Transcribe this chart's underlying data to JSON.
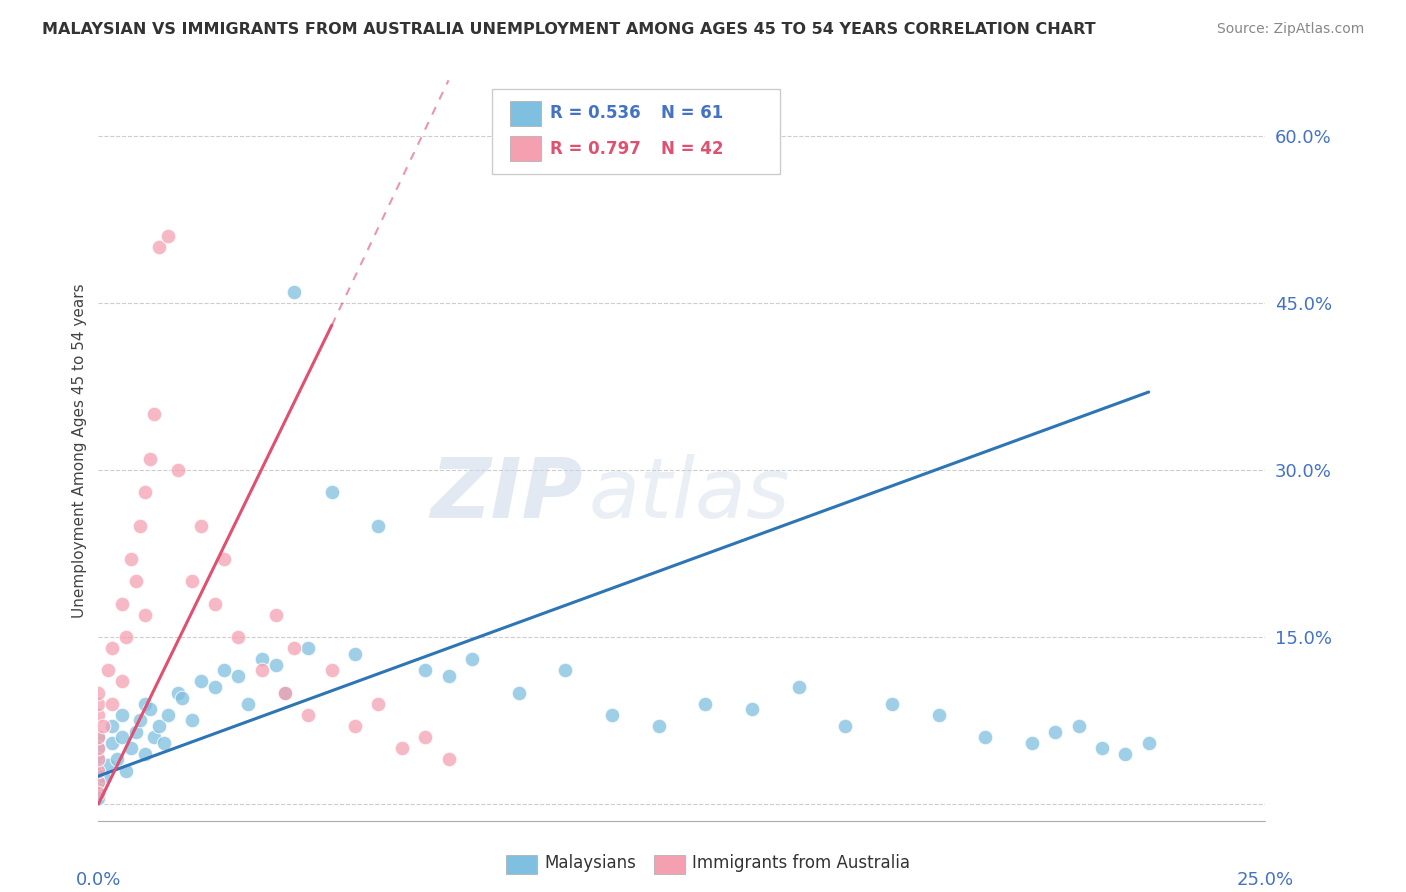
{
  "title": "MALAYSIAN VS IMMIGRANTS FROM AUSTRALIA UNEMPLOYMENT AMONG AGES 45 TO 54 YEARS CORRELATION CHART",
  "source": "Source: ZipAtlas.com",
  "ylabel": "Unemployment Among Ages 45 to 54 years",
  "xlim": [
    0.0,
    25.0
  ],
  "ylim": [
    -1.5,
    65.0
  ],
  "yticks": [
    0,
    15.0,
    30.0,
    45.0,
    60.0
  ],
  "ytick_labels": [
    "",
    "15.0%",
    "30.0%",
    "45.0%",
    "60.0%"
  ],
  "color_malaysian": "#7fbfdf",
  "color_immigrant": "#f4a0b0",
  "color_line_malaysian": "#2e75b6",
  "color_line_immigrant": "#e05070",
  "watermark_zip": "ZIP",
  "watermark_atlas": "atlas",
  "malaysian_x": [
    0.0,
    0.0,
    0.0,
    0.0,
    0.0,
    0.0,
    0.0,
    0.1,
    0.2,
    0.3,
    0.3,
    0.4,
    0.5,
    0.5,
    0.6,
    0.7,
    0.8,
    0.9,
    1.0,
    1.0,
    1.1,
    1.2,
    1.3,
    1.4,
    1.5,
    1.7,
    1.8,
    2.0,
    2.2,
    2.5,
    2.7,
    3.0,
    3.2,
    3.5,
    3.8,
    4.0,
    4.2,
    4.5,
    5.0,
    5.5,
    6.0,
    7.0,
    7.5,
    8.0,
    9.0,
    10.0,
    11.0,
    12.0,
    13.0,
    14.0,
    15.0,
    16.0,
    17.0,
    18.0,
    19.0,
    20.0,
    20.5,
    21.0,
    21.5,
    22.0,
    22.5
  ],
  "malaysian_y": [
    1.0,
    2.0,
    3.0,
    4.0,
    5.0,
    6.0,
    0.5,
    2.5,
    3.5,
    5.5,
    7.0,
    4.0,
    6.0,
    8.0,
    3.0,
    5.0,
    6.5,
    7.5,
    4.5,
    9.0,
    8.5,
    6.0,
    7.0,
    5.5,
    8.0,
    10.0,
    9.5,
    7.5,
    11.0,
    10.5,
    12.0,
    11.5,
    9.0,
    13.0,
    12.5,
    10.0,
    46.0,
    14.0,
    28.0,
    13.5,
    25.0,
    12.0,
    11.5,
    13.0,
    10.0,
    12.0,
    8.0,
    7.0,
    9.0,
    8.5,
    10.5,
    7.0,
    9.0,
    8.0,
    6.0,
    5.5,
    6.5,
    7.0,
    5.0,
    4.5,
    5.5
  ],
  "immigrant_x": [
    0.0,
    0.0,
    0.0,
    0.0,
    0.0,
    0.0,
    0.0,
    0.0,
    0.0,
    0.1,
    0.2,
    0.3,
    0.3,
    0.5,
    0.5,
    0.6,
    0.7,
    0.8,
    0.9,
    1.0,
    1.0,
    1.1,
    1.2,
    1.3,
    1.5,
    1.7,
    2.0,
    2.2,
    2.5,
    2.7,
    3.0,
    3.5,
    3.8,
    4.0,
    4.2,
    4.5,
    5.0,
    5.5,
    6.0,
    6.5,
    7.0,
    7.5
  ],
  "immigrant_y": [
    2.0,
    3.0,
    4.0,
    5.0,
    6.0,
    8.0,
    9.0,
    10.0,
    1.0,
    7.0,
    12.0,
    9.0,
    14.0,
    11.0,
    18.0,
    15.0,
    22.0,
    20.0,
    25.0,
    17.0,
    28.0,
    31.0,
    35.0,
    50.0,
    51.0,
    30.0,
    20.0,
    25.0,
    18.0,
    22.0,
    15.0,
    12.0,
    17.0,
    10.0,
    14.0,
    8.0,
    12.0,
    7.0,
    9.0,
    5.0,
    6.0,
    4.0
  ],
  "line_mal_x0": 0.0,
  "line_mal_y0": 2.5,
  "line_mal_x1": 22.5,
  "line_mal_y1": 37.0,
  "line_imm_x0": 0.0,
  "line_imm_y0": 0.0,
  "line_imm_x1": 5.0,
  "line_imm_y1": 43.0,
  "line_imm_dash_x0": 5.0,
  "line_imm_dash_y0": 43.0,
  "line_imm_dash_x1": 7.5,
  "line_imm_dash_y1": 65.0
}
